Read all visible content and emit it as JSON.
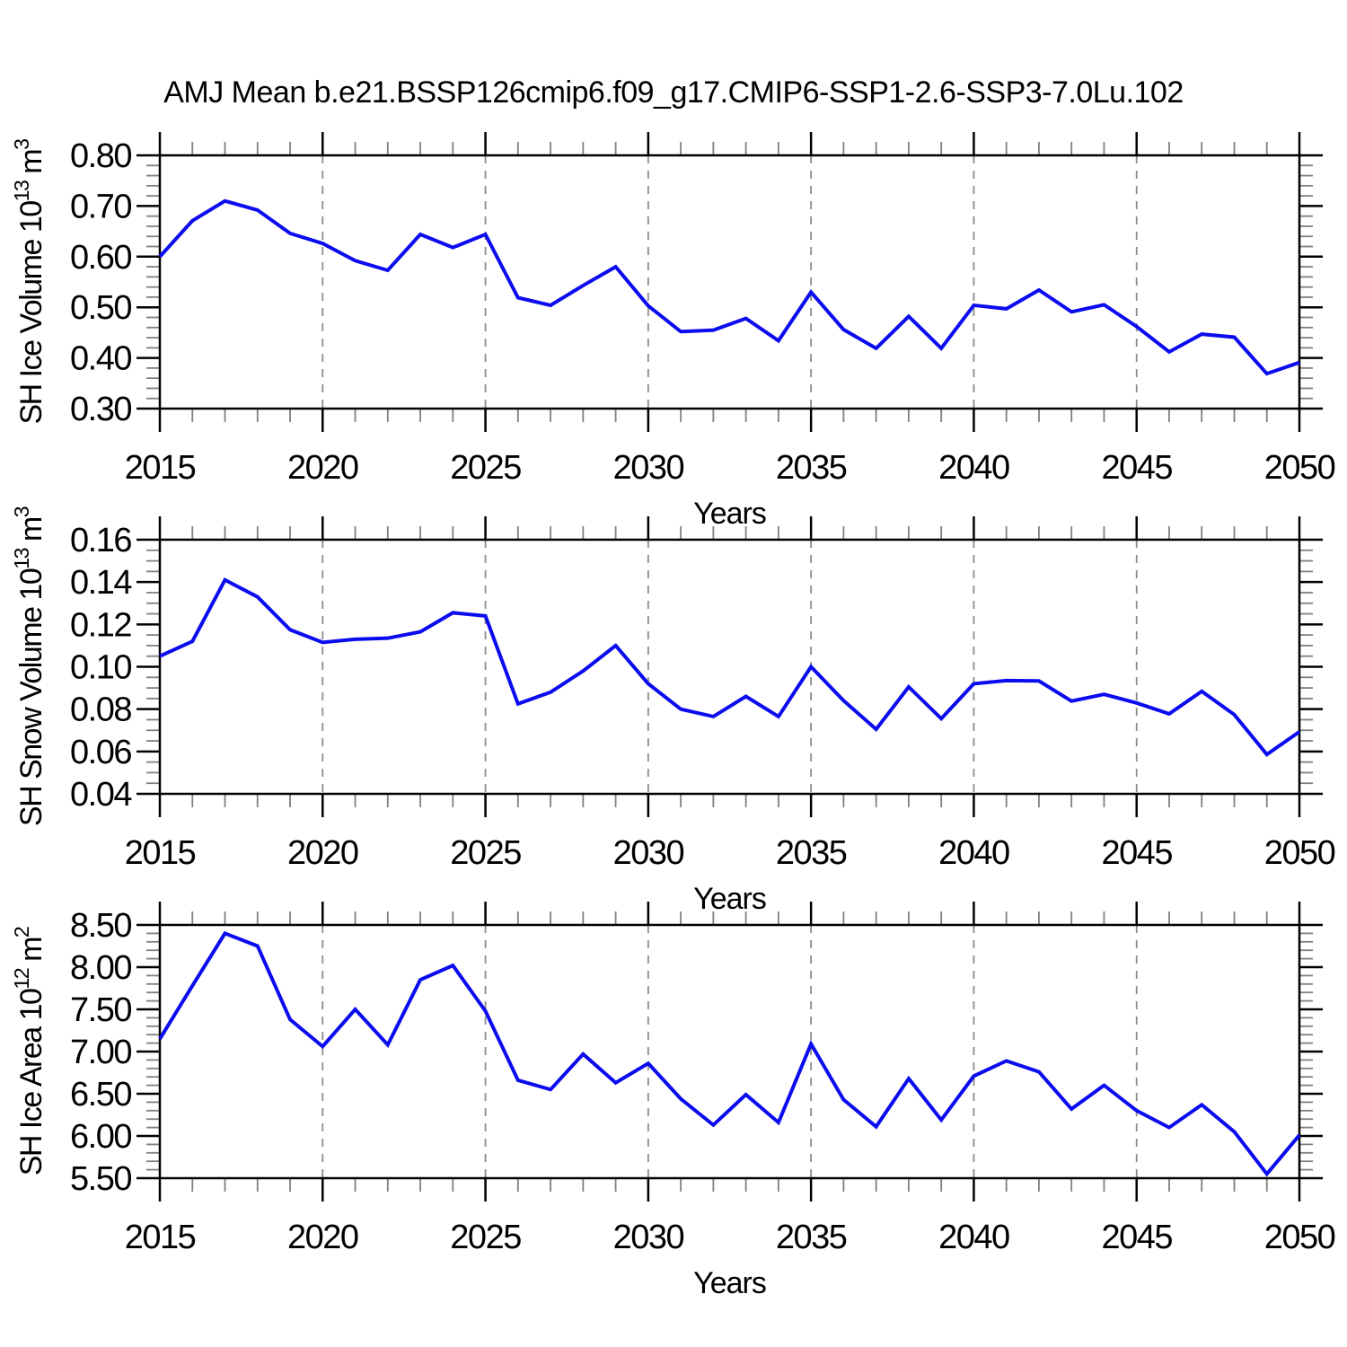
{
  "title": "AMJ Mean b.e21.BSSP126cmip6.f09_g17.CMIP6-SSP1-2.6-SSP3-7.0Lu.102",
  "colors": {
    "line": "#0b0bef",
    "frame": "#000000",
    "grid": "#8c8c8c",
    "minor_tick": "#808080",
    "text": "#000000",
    "background": "#ffffff"
  },
  "years": [
    2015,
    2016,
    2017,
    2018,
    2019,
    2020,
    2021,
    2022,
    2023,
    2024,
    2025,
    2026,
    2027,
    2028,
    2029,
    2030,
    2031,
    2032,
    2033,
    2034,
    2035,
    2036,
    2037,
    2038,
    2039,
    2040,
    2041,
    2042,
    2043,
    2044,
    2045,
    2046,
    2047,
    2048,
    2049,
    2050
  ],
  "chart_data": [
    {
      "type": "line",
      "series_name": "SH Ice Volume",
      "ylabel_parts": [
        {
          "text": "SH Ice Volume 10",
          "sup": false
        },
        {
          "text": "13",
          "sup": true
        },
        {
          "text": " m",
          "sup": false
        },
        {
          "text": "3",
          "sup": true
        }
      ],
      "xlabel": "Years",
      "xlim": [
        2015,
        2050
      ],
      "xticks": [
        2015,
        2020,
        2025,
        2030,
        2035,
        2040,
        2045,
        2050
      ],
      "xminor_step": 1,
      "grid_years": [
        2020,
        2025,
        2030,
        2035,
        2040,
        2045
      ],
      "ylim": [
        0.3,
        0.8
      ],
      "ytick_step": 0.1,
      "yminor_step": 0.02,
      "ytick_decimals": 2,
      "values": [
        0.6,
        0.671,
        0.71,
        0.692,
        0.646,
        0.626,
        0.592,
        0.573,
        0.644,
        0.618,
        0.644,
        0.519,
        0.504,
        0.543,
        0.58,
        0.503,
        0.452,
        0.455,
        0.478,
        0.434,
        0.53,
        0.456,
        0.419,
        0.482,
        0.419,
        0.504,
        0.497,
        0.534,
        0.491,
        0.505,
        0.462,
        0.412,
        0.447,
        0.441,
        0.369,
        0.391
      ]
    },
    {
      "type": "line",
      "series_name": "SH Snow Volume",
      "ylabel_parts": [
        {
          "text": "SH Snow Volume 10",
          "sup": false
        },
        {
          "text": "13",
          "sup": true
        },
        {
          "text": " m",
          "sup": false
        },
        {
          "text": "3",
          "sup": true
        }
      ],
      "xlabel": "Years",
      "xlim": [
        2015,
        2050
      ],
      "xticks": [
        2015,
        2020,
        2025,
        2030,
        2035,
        2040,
        2045,
        2050
      ],
      "xminor_step": 1,
      "grid_years": [
        2020,
        2025,
        2030,
        2035,
        2040,
        2045
      ],
      "ylim": [
        0.04,
        0.16
      ],
      "ytick_step": 0.02,
      "yminor_step": 0.005,
      "ytick_decimals": 2,
      "values": [
        0.105,
        0.112,
        0.141,
        0.133,
        0.1175,
        0.1115,
        0.113,
        0.1135,
        0.1165,
        0.1255,
        0.124,
        0.0825,
        0.088,
        0.098,
        0.11,
        0.092,
        0.08,
        0.0765,
        0.086,
        0.0765,
        0.1,
        0.084,
        0.0705,
        0.0905,
        0.0755,
        0.092,
        0.0935,
        0.0933,
        0.0838,
        0.087,
        0.0829,
        0.0778,
        0.0884,
        0.0774,
        0.0586,
        0.0693
      ]
    },
    {
      "type": "line",
      "series_name": "SH Ice Area",
      "ylabel_parts": [
        {
          "text": "SH Ice Area 10",
          "sup": false
        },
        {
          "text": "12",
          "sup": true
        },
        {
          "text": " m",
          "sup": false
        },
        {
          "text": "2",
          "sup": true
        }
      ],
      "xlabel": "Years",
      "xlim": [
        2015,
        2050
      ],
      "xticks": [
        2015,
        2020,
        2025,
        2030,
        2035,
        2040,
        2045,
        2050
      ],
      "xminor_step": 1,
      "grid_years": [
        2020,
        2025,
        2030,
        2035,
        2040,
        2045
      ],
      "ylim": [
        5.5,
        8.5
      ],
      "ytick_step": 0.5,
      "yminor_step": 0.1,
      "ytick_decimals": 2,
      "values": [
        7.15,
        7.78,
        8.4,
        8.25,
        7.38,
        7.06,
        7.5,
        7.08,
        7.85,
        8.02,
        7.48,
        6.66,
        6.55,
        6.97,
        6.63,
        6.86,
        6.44,
        6.13,
        6.49,
        6.16,
        7.09,
        6.43,
        6.11,
        6.68,
        6.19,
        6.71,
        6.89,
        6.76,
        6.32,
        6.6,
        6.3,
        6.1,
        6.37,
        6.05,
        5.55,
        6.01
      ]
    }
  ]
}
